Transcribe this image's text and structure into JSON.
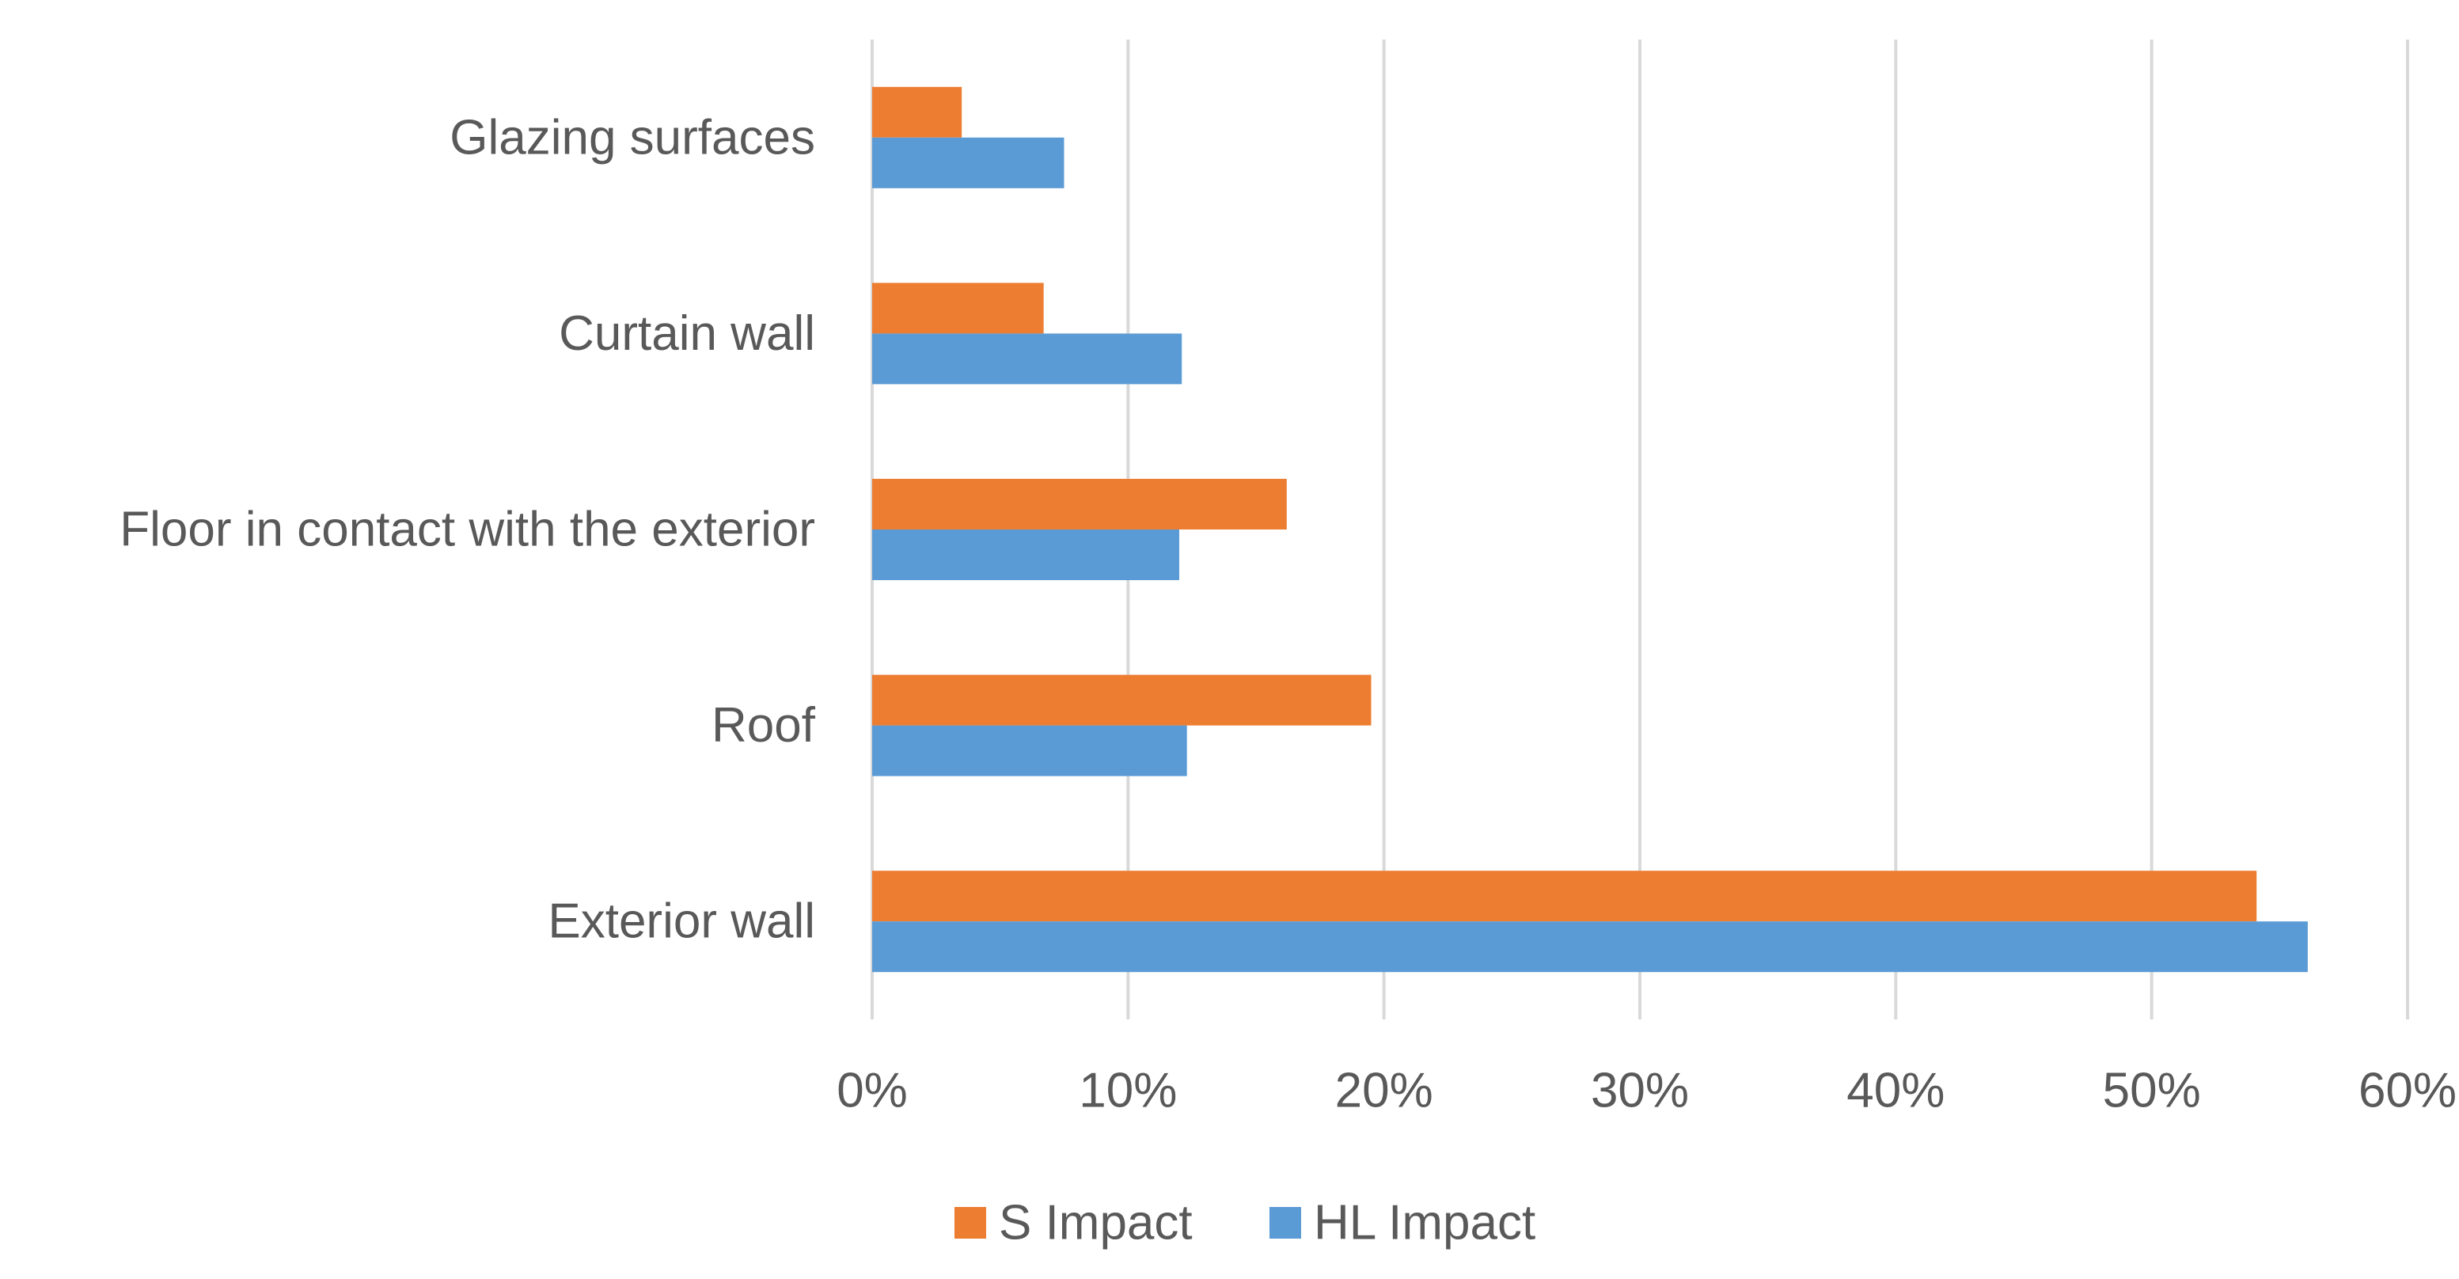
{
  "chart_data": {
    "type": "bar",
    "orientation": "horizontal",
    "title": "",
    "xlabel": "",
    "ylabel": "",
    "categories": [
      "Glazing surfaces",
      "Curtain wall",
      "Floor in contact with the exterior",
      "Roof",
      "Exterior wall"
    ],
    "series": [
      {
        "name": "S Impact",
        "color": "#ED7D31",
        "values": [
          3.5,
          6.7,
          16.2,
          19.5,
          54.1
        ]
      },
      {
        "name": "HL Impact",
        "color": "#5B9BD5",
        "values": [
          7.5,
          12.1,
          12.0,
          12.3,
          56.1
        ]
      }
    ],
    "xlim": [
      0,
      60
    ],
    "xticks": [
      0,
      10,
      20,
      30,
      40,
      50,
      60
    ],
    "xtick_labels": [
      "0%",
      "10%",
      "20%",
      "30%",
      "40%",
      "50%",
      "60%"
    ],
    "grid": true,
    "legend_position": "bottom"
  }
}
